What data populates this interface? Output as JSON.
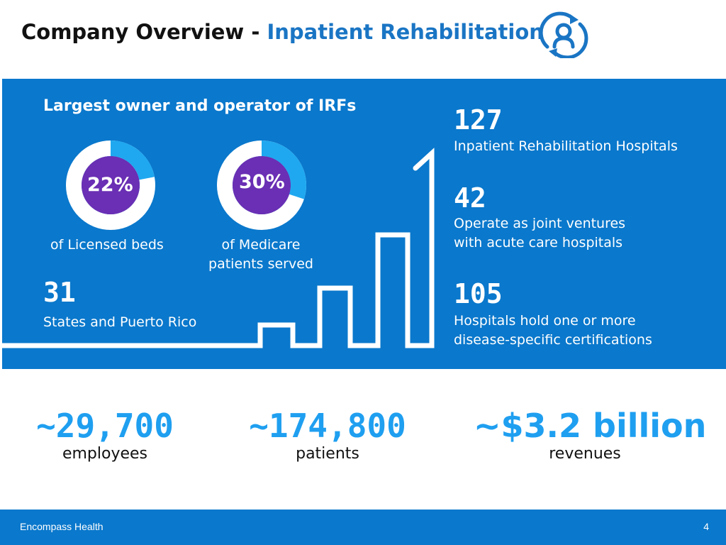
{
  "header": {
    "title_prefix": "Company Overview - ",
    "title_accent": "Inpatient Rehabilitation",
    "logo_icon": "person-refresh-icon"
  },
  "panel": {
    "heading": "Largest owner and operator of IRFs",
    "donuts": [
      {
        "value": "22%",
        "fraction": 0.22,
        "caption_lines": [
          "of Licensed beds"
        ]
      },
      {
        "value": "30%",
        "fraction": 0.3,
        "caption_lines": [
          "of Medicare",
          "patients served"
        ]
      }
    ],
    "stats": {
      "states": {
        "number": "31",
        "desc": "States and Puerto Rico"
      },
      "hospitals": {
        "number": "127",
        "desc": "Inpatient Rehabilitation Hospitals"
      },
      "joint_ventures": {
        "number": "42",
        "desc_lines": [
          "Operate as joint ventures",
          "with acute care hospitals"
        ]
      },
      "certified": {
        "number": "105",
        "desc_lines": [
          "Hospitals hold one or more",
          "disease-specific certifications"
        ]
      }
    }
  },
  "kpis": [
    {
      "value": "~29,700",
      "label": "employees"
    },
    {
      "value": "~174,800",
      "label": "patients"
    },
    {
      "value": "~$3.2 billion",
      "label": "revenues"
    }
  ],
  "footer": {
    "company": "Encompass Health",
    "page_number": "4"
  },
  "colors": {
    "accent": "#1a75c4",
    "panel_blue": "#0a78cc",
    "donut_highlight": "#1fa8f0",
    "donut_center": "#6a2fb4",
    "kpi_blue": "#1f9ff0"
  }
}
